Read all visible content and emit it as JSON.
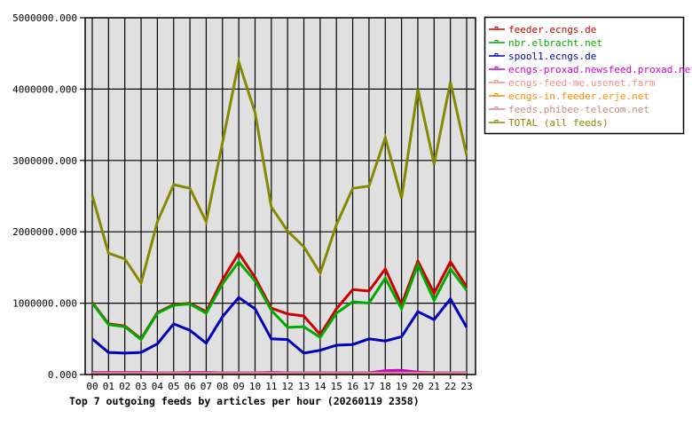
{
  "chart_data": {
    "type": "line",
    "title": "Top 7 outgoing feeds by articles per hour (20260119 2358)",
    "xlabel": "",
    "ylabel": "",
    "ylim": [
      0,
      5000000
    ],
    "yticks": [
      "0.000",
      "1000000.000",
      "2000000.000",
      "3000000.000",
      "4000000.000",
      "5000000.000"
    ],
    "grid": true,
    "legend_position": "right",
    "plot_background": "#e0e0e0",
    "categories": [
      "00",
      "01",
      "02",
      "03",
      "04",
      "05",
      "06",
      "07",
      "08",
      "09",
      "10",
      "11",
      "12",
      "13",
      "14",
      "15",
      "16",
      "17",
      "18",
      "19",
      "20",
      "21",
      "22",
      "23"
    ],
    "series": [
      {
        "name": "feeder.ecngs.de",
        "color": "#cc0000",
        "values": [
          1010000,
          710000,
          680000,
          500000,
          870000,
          980000,
          1000000,
          880000,
          1330000,
          1700000,
          1360000,
          930000,
          850000,
          820000,
          560000,
          920000,
          1190000,
          1170000,
          1480000,
          980000,
          1590000,
          1140000,
          1580000,
          1230000
        ]
      },
      {
        "name": "nbr.elbracht.net",
        "color": "#00aa00",
        "values": [
          1000000,
          700000,
          670000,
          490000,
          860000,
          970000,
          990000,
          860000,
          1270000,
          1580000,
          1310000,
          900000,
          660000,
          670000,
          520000,
          860000,
          1020000,
          1000000,
          1350000,
          920000,
          1540000,
          1040000,
          1480000,
          1180000
        ]
      },
      {
        "name": "spool1.ecngs.de",
        "color": "#0000bb",
        "values": [
          500000,
          310000,
          300000,
          310000,
          430000,
          710000,
          620000,
          440000,
          810000,
          1080000,
          920000,
          500000,
          490000,
          300000,
          340000,
          410000,
          420000,
          500000,
          470000,
          530000,
          880000,
          770000,
          1060000,
          660000
        ]
      },
      {
        "name": "ecngs-proxad.newsfeed.proxad.net",
        "color": "#cc00cc",
        "values": [
          30000,
          30000,
          30000,
          30000,
          25000,
          25000,
          30000,
          30000,
          25000,
          25000,
          25000,
          30000,
          25000,
          25000,
          25000,
          25000,
          25000,
          25000,
          55000,
          60000,
          35000,
          25000,
          25000,
          25000
        ]
      },
      {
        "name": "ecngs-feed-me.usenet.farm",
        "color": "#ff8888",
        "values": [
          15000,
          15000,
          15000,
          15000,
          15000,
          15000,
          15000,
          15000,
          15000,
          15000,
          15000,
          15000,
          15000,
          15000,
          15000,
          15000,
          15000,
          15000,
          15000,
          15000,
          15000,
          15000,
          15000,
          15000
        ]
      },
      {
        "name": "ecngs-in.feeder.erje.net",
        "color": "#ff8800",
        "values": [
          10000,
          10000,
          10000,
          10000,
          10000,
          10000,
          10000,
          10000,
          10000,
          10000,
          10000,
          10000,
          10000,
          10000,
          10000,
          10000,
          10000,
          10000,
          10000,
          10000,
          10000,
          10000,
          10000,
          10000
        ]
      },
      {
        "name": "feeds.phibee-telecom.net",
        "color": "#cc8888",
        "values": [
          20000,
          20000,
          20000,
          20000,
          20000,
          20000,
          20000,
          20000,
          20000,
          20000,
          20000,
          20000,
          20000,
          20000,
          20000,
          20000,
          20000,
          20000,
          20000,
          20000,
          20000,
          20000,
          20000,
          20000
        ]
      },
      {
        "name": "TOTAL (all feeds)",
        "color": "#888800",
        "values": [
          2510000,
          1700000,
          1620000,
          1280000,
          2140000,
          2660000,
          2610000,
          2140000,
          3250000,
          4380000,
          3670000,
          2350000,
          2010000,
          1790000,
          1420000,
          2100000,
          2610000,
          2640000,
          3320000,
          2470000,
          4000000,
          2950000,
          4100000,
          3070000
        ]
      }
    ]
  }
}
